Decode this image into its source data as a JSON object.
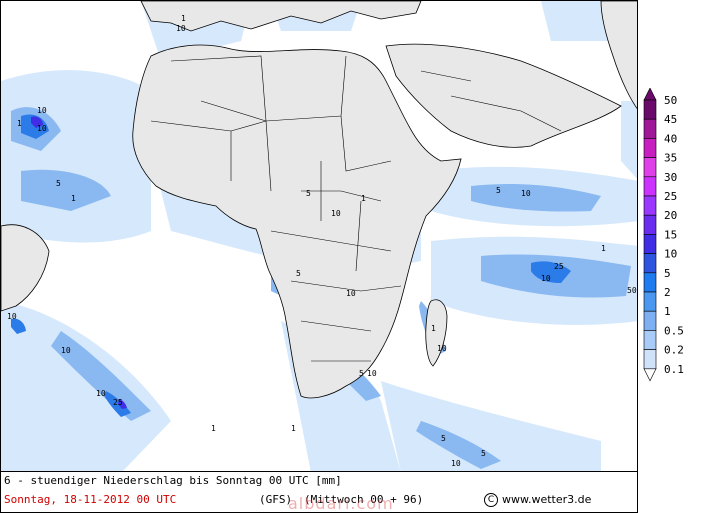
{
  "footer": {
    "title": "6 - stuendiger Niederschlag bis Sonntag 00 UTC [mm]",
    "date": "Sonntag, 18-11-2012  00 UTC",
    "model": "(GFS)",
    "run": "(Mittwoch 00 + 96)",
    "credit_symbol": "C",
    "credit": "www.wetter3.de"
  },
  "watermark": "albdari.com",
  "legend": {
    "levels": [
      "50",
      "45",
      "40",
      "35",
      "30",
      "25",
      "20",
      "15",
      "10",
      "5",
      "2",
      "1",
      "0.5",
      "0.2",
      "0.1"
    ],
    "colors": [
      "#6a0a6a",
      "#a01898",
      "#c820c0",
      "#e040e8",
      "#cc33ff",
      "#9a38ff",
      "#6a2df0",
      "#3f2ee6",
      "#2f55e0",
      "#1e7cf0",
      "#4a98f0",
      "#7db0f3",
      "#a9cbf7",
      "#cfe2fa",
      "#ffffff"
    ]
  },
  "colors": {
    "land": "#e8e8e8",
    "border": "#000000",
    "rain_light": "#d6e8fb",
    "rain_mid": "#8ab9f2",
    "rain_high": "#2b7be8",
    "rain_peak": "#3f2ee6"
  },
  "labels": {
    "one": "1",
    "five": "5",
    "ten": "10",
    "twenty_five": "25",
    "fifty": "50"
  }
}
